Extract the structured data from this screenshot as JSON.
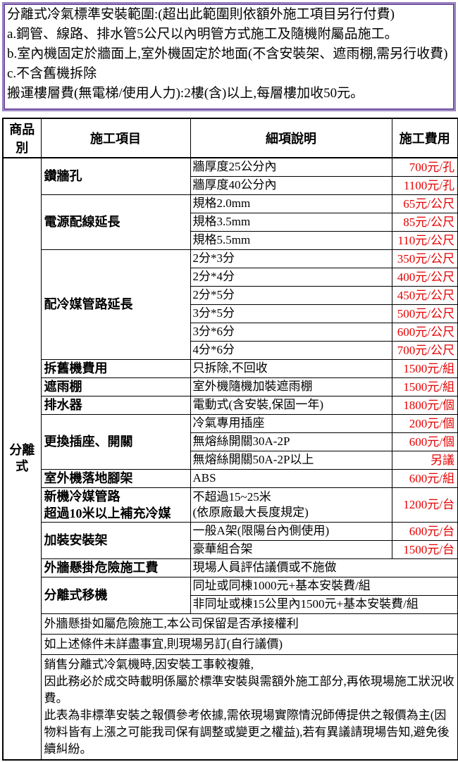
{
  "notice": {
    "lines": [
      "分離式冷氣標準安裝範圍:(超出此範圍則依額外施工項目另行付費)",
      "a.鋼管、線路、排水管5公尺以內明管方式施工及隨機附屬品施工。",
      "b.室內機固定於牆面上,室外機固定於地面(不含安裝架、遮雨棚,需另行收費)",
      "c.不含舊機拆除",
      "搬運樓層費(無電梯/使用人力):2樓(含)以上,每層樓加收50元。"
    ]
  },
  "table": {
    "headers": [
      "商品別",
      "施工項目",
      "細項說明",
      "施工費用"
    ],
    "category": "分離式",
    "groups": [
      {
        "item": "鑽牆孔",
        "rows": [
          [
            "牆厚度25公分內",
            "700元/孔"
          ],
          [
            "牆厚度40公分內",
            "1100元/孔"
          ]
        ]
      },
      {
        "item": "電源配線延長",
        "rows": [
          [
            "規格2.0mm",
            "65元/公尺"
          ],
          [
            "規格3.5mm",
            "85元/公尺"
          ],
          [
            "規格5.5mm",
            "110元/公尺"
          ]
        ]
      },
      {
        "item": "配冷媒管路延長",
        "rows": [
          [
            "2分*3分",
            "350元/公尺"
          ],
          [
            "2分*4分",
            "400元/公尺"
          ],
          [
            "2分*5分",
            "450元/公尺"
          ],
          [
            "3分*5分",
            "500元/公尺"
          ],
          [
            "3分*6分",
            "600元/公尺"
          ],
          [
            "4分*6分",
            "700元/公尺"
          ]
        ]
      },
      {
        "item": "拆舊機費用",
        "rows": [
          [
            "只拆除,不回收",
            "1500元/組"
          ]
        ]
      },
      {
        "item": "遮雨棚",
        "rows": [
          [
            "室外機隨機加裝遮雨棚",
            "1500元/組"
          ]
        ]
      },
      {
        "item": "排水器",
        "rows": [
          [
            "電動式(含安裝,保固一年)",
            "1800元/個"
          ]
        ]
      },
      {
        "item": "更換插座、開關",
        "rows": [
          [
            "冷氣專用插座",
            "200元/個"
          ],
          [
            "無熔絲開關30A-2P",
            "600元/個"
          ],
          [
            "無熔絲開關50A-2P以上",
            "另議"
          ]
        ]
      },
      {
        "item": "室外機落地腳架",
        "rows": [
          [
            "ABS",
            "600元/組"
          ]
        ]
      },
      {
        "item": "新機冷媒管路\n超過10米以上補充冷媒",
        "rows": [
          [
            "不超過15~25米\n(依原廠最大長度規定)",
            "1200元/台"
          ]
        ]
      },
      {
        "item": "加裝安裝架",
        "rows": [
          [
            "一般A架(限陽台內側使用)",
            "600元/台"
          ],
          [
            "豪華組合架",
            "1500元/台"
          ]
        ]
      },
      {
        "item": "外牆懸掛危險施工費",
        "rows": [
          [
            "現場人員評估議價或不施做",
            null
          ]
        ]
      },
      {
        "item": "分離式移機",
        "rows": [
          [
            "同址或同棟1000元+基本安裝費/組",
            null
          ],
          [
            "非同址或棟15公里內1500元+基本安裝費/組",
            null
          ]
        ]
      }
    ],
    "notes": [
      "外牆懸掛如屬危險施工,本公司保留是否承接權利",
      "如上述條件未詳盡事宜,則現場另訂(自行議價)",
      "銷售分離式冷氣機時,因安裝工事較複雜,\n因此務必於成交時載明係屬於標準安裝與需額外施工部分,再依現場施工狀況收費。\n此表為非標準安裝之報價參考依據,需依現場實際情況師傅提供之報價為主(因物料皆有上漲之可能我司保有調整或變更之權益),若有異議請現場告知,避免後續糾紛。"
    ]
  },
  "colors": {
    "notice_border_purple": "#6f4f9e",
    "fee_text_red": "#e60000",
    "table_border_black": "#000000"
  }
}
